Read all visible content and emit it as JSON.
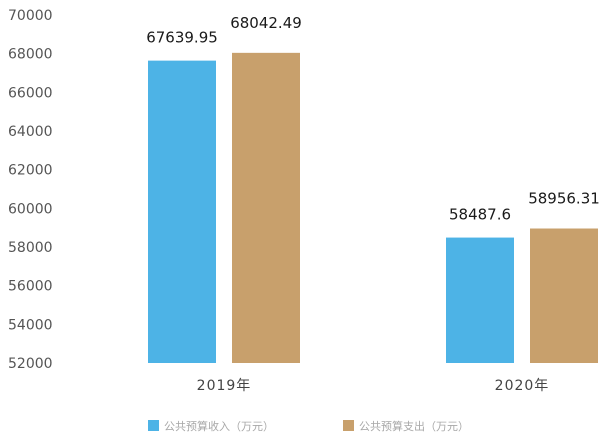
{
  "chart_data": {
    "type": "bar",
    "categories": [
      "2019年",
      "2020年"
    ],
    "series": [
      {
        "name": "公共预算收入（万元）",
        "color": "#4db3e6",
        "values": [
          67639.95,
          58487.6
        ]
      },
      {
        "name": "公共预算支出（万元）",
        "color": "#c8a06c",
        "values": [
          68042.49,
          58956.31
        ]
      }
    ],
    "data_labels": [
      [
        "67639.95",
        "58487.6"
      ],
      [
        "68042.49",
        "58956.31"
      ]
    ],
    "y_ticks": [
      "70000",
      "68000",
      "66000",
      "64000",
      "62000",
      "60000",
      "58000",
      "56000",
      "54000",
      "52000"
    ],
    "ylim": [
      52000,
      70000
    ],
    "grid": false,
    "legend_position": "bottom",
    "title": "",
    "xlabel": "",
    "ylabel": ""
  }
}
